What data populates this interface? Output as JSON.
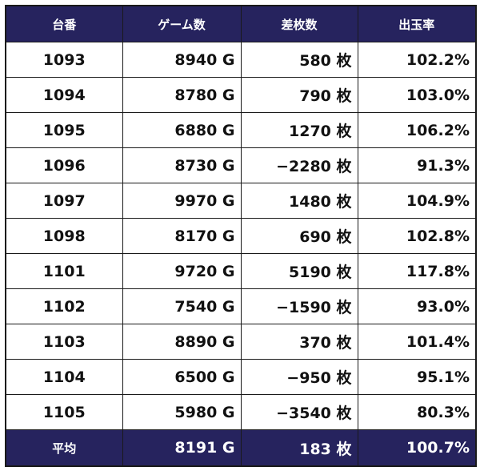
{
  "headers": [
    "台番",
    "ゲーム数",
    "差枚数",
    "出玉率"
  ],
  "rows": [
    {
      "id": "1093",
      "games": "8940 G",
      "diff": "580 枚",
      "rate": "102.2%"
    },
    {
      "id": "1094",
      "games": "8780 G",
      "diff": "790 枚",
      "rate": "103.0%"
    },
    {
      "id": "1095",
      "games": "6880 G",
      "diff": "1270 枚",
      "rate": "106.2%"
    },
    {
      "id": "1096",
      "games": "8730 G",
      "diff": "−2280 枚",
      "rate": "91.3%"
    },
    {
      "id": "1097",
      "games": "9970 G",
      "diff": "1480 枚",
      "rate": "104.9%"
    },
    {
      "id": "1098",
      "games": "8170 G",
      "diff": "690 枚",
      "rate": "102.8%"
    },
    {
      "id": "1101",
      "games": "9720 G",
      "diff": "5190 枚",
      "rate": "117.8%"
    },
    {
      "id": "1102",
      "games": "7540 G",
      "diff": "−1590 枚",
      "rate": "93.0%"
    },
    {
      "id": "1103",
      "games": "8890 G",
      "diff": "370 枚",
      "rate": "101.4%"
    },
    {
      "id": "1104",
      "games": "6500 G",
      "diff": "−950 枚",
      "rate": "95.1%"
    },
    {
      "id": "1105",
      "games": "5980 G",
      "diff": "−3540 枚",
      "rate": "80.3%"
    }
  ],
  "footer": {
    "label": "平均",
    "games": "8191 G",
    "diff": "183 枚",
    "rate": "100.7%"
  },
  "colors": {
    "header_bg": "#26235e",
    "header_text": "#ffffff",
    "border": "#1a1a1a"
  }
}
